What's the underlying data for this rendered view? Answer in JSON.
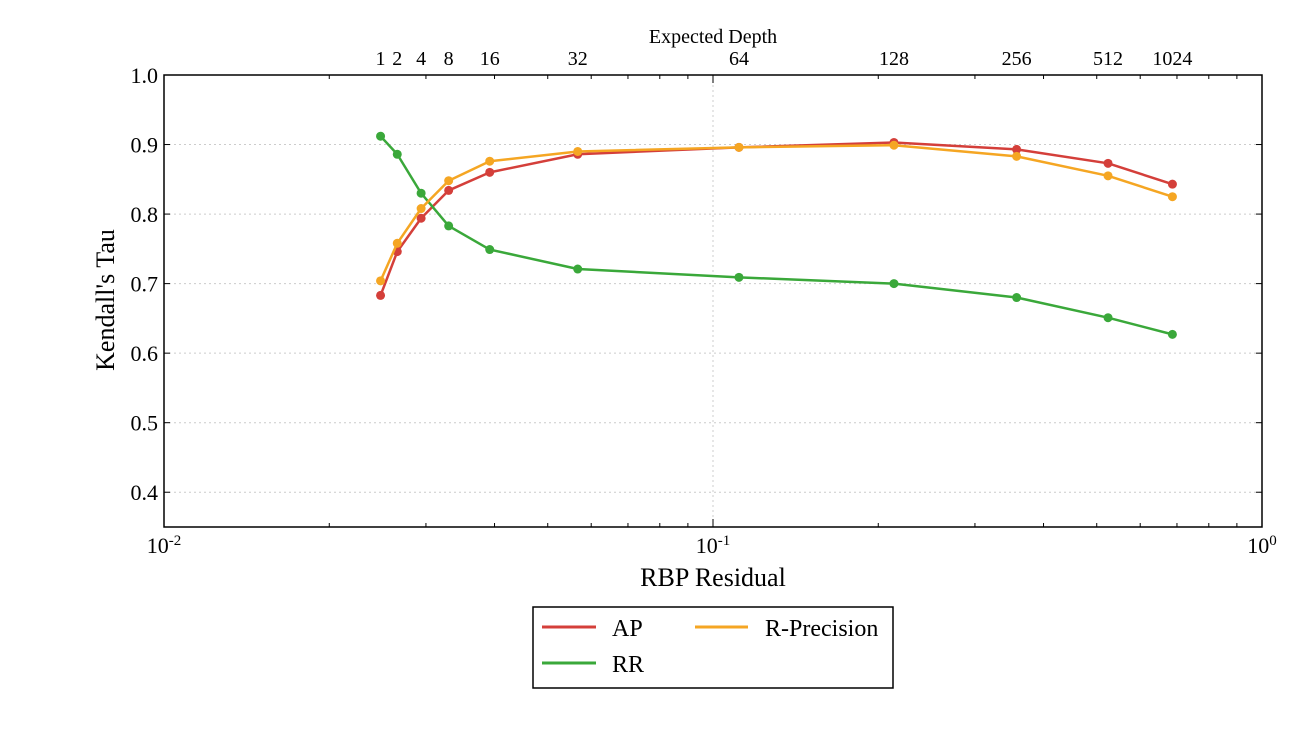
{
  "chart_data": {
    "type": "line",
    "title": "",
    "xlabel": "RBP Residual",
    "ylabel": "Kendall's Tau",
    "x2label": "Expected Depth",
    "xscale": "log",
    "xlim": [
      0.01,
      1.0
    ],
    "ylim": [
      0.35,
      1.0
    ],
    "grid": true,
    "legend_position": "bottom-center",
    "y_ticks": [
      "0.4",
      "0.5",
      "0.6",
      "0.7",
      "0.8",
      "0.9",
      "1.0"
    ],
    "x_ticks": [
      {
        "value": 0.01,
        "base": "10",
        "exp": "-2"
      },
      {
        "value": 0.1,
        "base": "10",
        "exp": "-1"
      },
      {
        "value": 1.0,
        "base": "10",
        "exp": "0"
      }
    ],
    "depth_labels": [
      "1",
      "2",
      "4",
      "8",
      "16",
      "32",
      "64",
      "128",
      "256",
      "512",
      "1024"
    ],
    "x": [
      0.0248,
      0.0266,
      0.0294,
      0.033,
      0.0392,
      0.0567,
      0.1115,
      0.2136,
      0.3573,
      0.5243,
      0.6868
    ],
    "series": [
      {
        "name": "AP",
        "color": "#d43f3a",
        "values": [
          0.683,
          0.746,
          0.794,
          0.834,
          0.86,
          0.886,
          0.896,
          0.903,
          0.893,
          0.873,
          0.843
        ]
      },
      {
        "name": "RR",
        "color": "#3aa83a",
        "values": [
          0.912,
          0.886,
          0.83,
          0.783,
          0.749,
          0.721,
          0.709,
          0.7,
          0.68,
          0.651,
          0.627
        ]
      },
      {
        "name": "R-Precision",
        "color": "#f5a623",
        "values": [
          0.704,
          0.758,
          0.808,
          0.848,
          0.876,
          0.89,
          0.896,
          0.899,
          0.883,
          0.855,
          0.825
        ]
      }
    ]
  }
}
